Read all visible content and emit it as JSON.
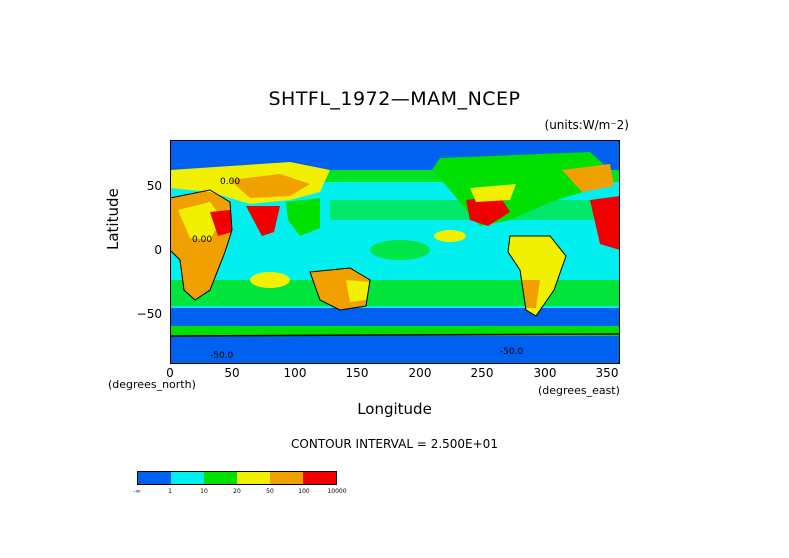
{
  "title": "SHTFL_1972—MAM_NCEP",
  "units": "(units:W/m⁻2)",
  "axes": {
    "y_label": "Latitude",
    "x_label": "Longitude",
    "y_ticks": [
      "50",
      "0",
      "−50"
    ],
    "x_ticks": [
      "0",
      "50",
      "100",
      "150",
      "200",
      "250",
      "300",
      "350"
    ],
    "x_units_left": "(degrees_north)",
    "x_units_right": "(degrees_east)"
  },
  "contour_interval": "CONTOUR INTERVAL = 2.500E+01",
  "contour_labels": [
    "0.00",
    "0.00",
    "-50.0",
    "-50.0"
  ],
  "colorbar": {
    "colors": [
      "#0060f0",
      "#00f0f0",
      "#00e000",
      "#f0f000",
      "#f0a000",
      "#f00000"
    ],
    "labels": [
      "-∞",
      "1",
      "10",
      "20",
      "50",
      "100",
      "10000"
    ]
  },
  "map_colors": {
    "ocean_deep": "#0060f0",
    "ocean_light": "#00f0f0",
    "green": "#00e000",
    "yellow": "#f0f000",
    "orange": "#f0a000",
    "red": "#f00000"
  }
}
